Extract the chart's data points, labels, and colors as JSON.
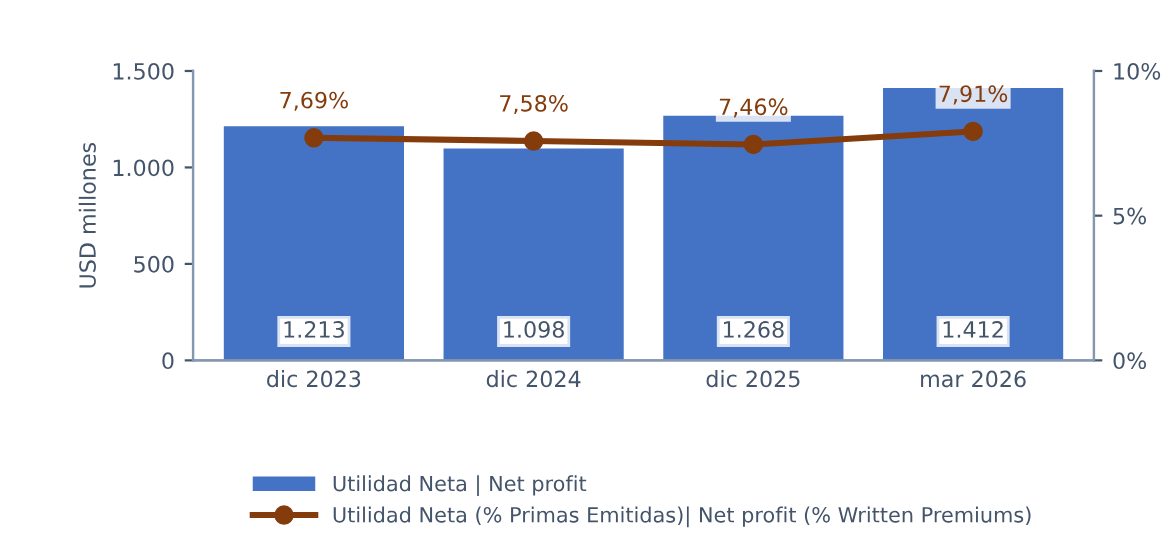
{
  "chart_data": {
    "type": "bar",
    "ylabel": "USD millones",
    "categories": [
      "dic 2023",
      "dic 2024",
      "dic 2025",
      "mar 2026"
    ],
    "series": [
      {
        "name": "Utilidad Neta | Net profit",
        "color": "#4472c4",
        "values": [
          1213,
          1098,
          1268,
          1412
        ],
        "value_labels": [
          "1.213",
          "1.098",
          "1.268",
          "1.412"
        ]
      },
      {
        "name": "Utilidad Neta (% Primas Emitidas)| Net profit (% Written Premiums)",
        "type": "line",
        "axis": "y2",
        "color": "#843c0c",
        "marker": "circle",
        "values": [
          7.69,
          7.58,
          7.46,
          7.91
        ],
        "value_labels": [
          "7,69%",
          "7,58%",
          "7,46%",
          "7,91%"
        ]
      }
    ],
    "ylim": [
      0,
      1500
    ],
    "yticks": [
      0,
      {
        "value": 500,
        "label": "500"
      },
      {
        "value": 1000,
        "label": "1.000"
      },
      {
        "value": 1500,
        "label": "1.500"
      }
    ],
    "y2lim": [
      0,
      10
    ],
    "y2ticks": [
      {
        "value": 0,
        "label": "0%"
      },
      {
        "value": 5,
        "label": "5%"
      },
      {
        "value": 10,
        "label": "10%"
      }
    ],
    "grid": false,
    "legend": "bottom"
  }
}
